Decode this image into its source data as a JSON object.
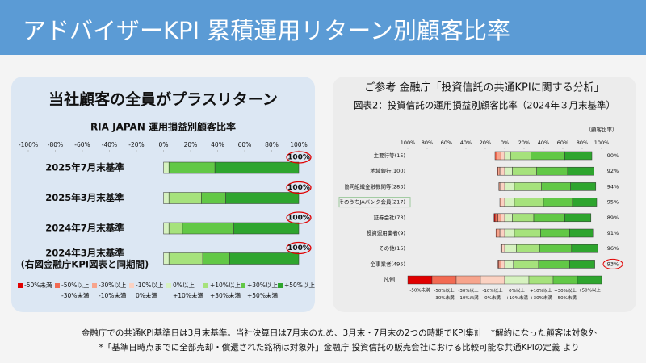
{
  "header": {
    "title": "アドバイザーKPI 累積運用リターン別顧客比率"
  },
  "left_panel": {
    "heading": "当社顧客の全員がプラスリターン"
  },
  "right_panel": {
    "heading": "ご参考 金融庁「投資信託の共通KPIに関する分析」"
  },
  "footnotes": [
    "金融庁での共通KPI基準日は3月末基準。当社決算日は7月末のため、3月末・7月末の2つの時期でKPI集計　*解約になった顧客は対象外",
    "*「基準日時点までに全部売却・償還された銘柄は対象外」金融庁 投資信託の販売会社における比較可能な共通KPIの定義 より"
  ],
  "chart_data": [
    {
      "type": "bar",
      "orientation": "horizontal",
      "stacked": true,
      "title": "RIA JAPAN 運用損益別顧客比率",
      "categories": [
        "2025年7月末基準",
        "2025年3月末基準",
        "2024年7月末基準",
        "2024年3月末基準\n(右図金融庁KPI図表と同期間)"
      ],
      "series": [
        {
          "name": "-50%未満",
          "color": "#e00000",
          "values": [
            0,
            0,
            0,
            0
          ]
        },
        {
          "name": "-50%以上 -30%未満",
          "color": "#f26a52",
          "values": [
            0,
            0,
            0,
            0
          ]
        },
        {
          "name": "-30%以上 -10%未満",
          "color": "#f7a48c",
          "values": [
            0,
            0,
            0,
            0
          ]
        },
        {
          "name": "-10%以上 0%未満",
          "color": "#fbd2c2",
          "values": [
            0,
            0,
            0,
            0
          ]
        },
        {
          "name": "0%以上 +10%未満",
          "color": "#d6f2c0",
          "values": [
            4,
            4,
            4,
            4
          ]
        },
        {
          "name": "+10%以上 +30%未満",
          "color": "#a6e27c",
          "values": [
            0,
            24,
            10,
            25
          ]
        },
        {
          "name": "+30%以上 +50%未満",
          "color": "#62c846",
          "values": [
            34,
            18,
            38,
            20
          ]
        },
        {
          "name": "+50%以上",
          "color": "#2ea52e",
          "values": [
            62,
            54,
            48,
            51
          ]
        }
      ],
      "xlim": [
        -100,
        100
      ],
      "xticks": [
        {
          "value": -100,
          "label": "-100%"
        },
        {
          "value": -80,
          "label": "-80%"
        },
        {
          "value": -60,
          "label": "-60%"
        },
        {
          "value": -40,
          "label": "-40%"
        },
        {
          "value": -20,
          "label": "-20%"
        },
        {
          "value": 0,
          "label": "0%"
        },
        {
          "value": 20,
          "label": "20%"
        },
        {
          "value": 40,
          "label": "40%"
        },
        {
          "value": 60,
          "label": "60%"
        },
        {
          "value": 80,
          "label": "80%"
        },
        {
          "value": 100,
          "label": "100%"
        }
      ],
      "annotations": [
        "100%",
        "100%",
        "100%",
        "100%"
      ]
    },
    {
      "type": "bar",
      "orientation": "horizontal",
      "stacked": true,
      "title": "図表2：投資信託の運用損益別顧客比率（2024年３月末基準）",
      "unit_label": "（顧客比率）",
      "legend_title": "凡例",
      "categories": [
        "主要行等(15)",
        "地域銀行(100)",
        "協同組織金融機関等(283)",
        "そのうちJAバンク会員(217)",
        "証券会社(73)",
        "投資運用業者(9)",
        "その他(15)",
        "全事業者(495)"
      ],
      "series": [
        {
          "name": "-50%未満",
          "color": "#e00000",
          "values": [
            0,
            0,
            0,
            0,
            -1,
            0,
            0,
            0
          ]
        },
        {
          "name": "-50%以上 -30%未満",
          "color": "#f26a52",
          "values": [
            -2,
            -1,
            0,
            0,
            -3,
            -1,
            0,
            -1
          ]
        },
        {
          "name": "-30%以上 -10%未満",
          "color": "#f7a48c",
          "values": [
            -4,
            -2,
            -1,
            -1,
            -3,
            -3,
            -1,
            -2
          ]
        },
        {
          "name": "-10%以上 0%未満",
          "color": "#fbd2c2",
          "values": [
            -4,
            -5,
            -5,
            -4,
            -4,
            -5,
            -3,
            -4
          ]
        },
        {
          "name": "0%以上 +10%未満",
          "color": "#d6f2c0",
          "values": [
            6,
            8,
            10,
            10,
            8,
            10,
            12,
            9
          ]
        },
        {
          "name": "+10%以上 +30%未満",
          "color": "#a6e27c",
          "values": [
            21,
            25,
            28,
            30,
            22,
            27,
            24,
            26
          ]
        },
        {
          "name": "+30%以上 +50%未満",
          "color": "#62c846",
          "values": [
            35,
            32,
            30,
            30,
            32,
            30,
            33,
            32
          ]
        },
        {
          "name": "+50%以上",
          "color": "#2ea52e",
          "values": [
            28,
            27,
            26,
            25,
            27,
            24,
            27,
            26
          ]
        }
      ],
      "xlim": [
        -100,
        100
      ],
      "xticks": [
        {
          "value": -100,
          "label": "100%"
        },
        {
          "value": -80,
          "label": "80%"
        },
        {
          "value": -60,
          "label": "60%"
        },
        {
          "value": -40,
          "label": "40%"
        },
        {
          "value": -20,
          "label": "20%"
        },
        {
          "value": 0,
          "label": "0%"
        },
        {
          "value": 20,
          "label": "20%"
        },
        {
          "value": 40,
          "label": "40%"
        },
        {
          "value": 60,
          "label": "60%"
        },
        {
          "value": 80,
          "label": "80%"
        },
        {
          "value": 100,
          "label": "100%"
        }
      ],
      "share_labels": [
        "90%",
        "92%",
        "94%",
        "95%",
        "89%",
        "91%",
        "96%",
        "93%"
      ]
    }
  ]
}
